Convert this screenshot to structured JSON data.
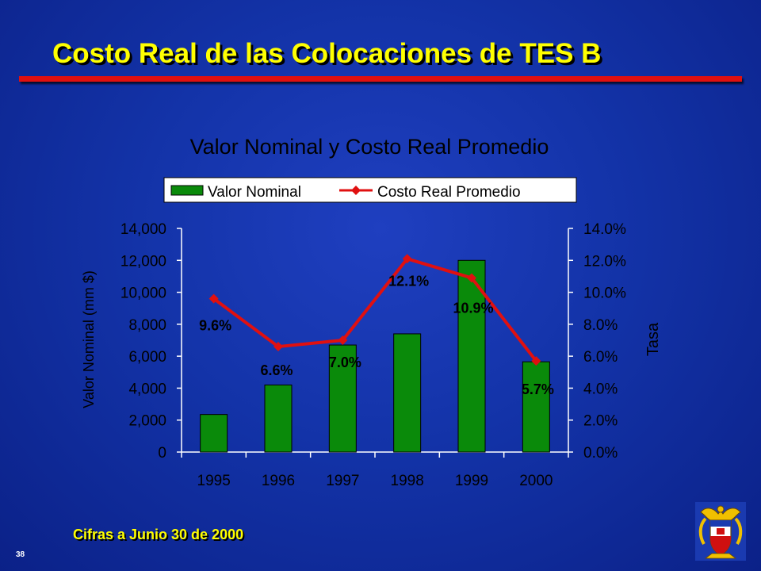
{
  "slide": {
    "title": "Costo Real de las Colocaciones de TES B",
    "footnote": "Cifras a Junio 30 de 2000",
    "page_number": "38"
  },
  "colors": {
    "bar": "#0a8a0a",
    "line": "#e01010",
    "title": "#ffff00",
    "rule": "#e01010",
    "axis": "#ffffff"
  },
  "icons": {
    "emblem": "colombia-coat-of-arms-icon"
  },
  "chart_data": {
    "type": "bar",
    "title": "Valor Nominal y Costo Real Promedio",
    "categories": [
      "1995",
      "1996",
      "1997",
      "1998",
      "1999",
      "2000"
    ],
    "ylabel": "Valor Nominal (mm $)",
    "y2label": "Tasa",
    "ylim": [
      0,
      14000
    ],
    "y2lim": [
      0,
      0.14
    ],
    "yticks": [
      "0",
      "2,000",
      "4,000",
      "6,000",
      "8,000",
      "10,000",
      "12,000",
      "14,000"
    ],
    "y2ticks": [
      "0.0%",
      "2.0%",
      "4.0%",
      "6.0%",
      "8.0%",
      "10.0%",
      "12.0%",
      "14.0%"
    ],
    "legend_position": "top",
    "grid": false,
    "series": [
      {
        "name": "Valor Nominal",
        "type": "bar",
        "axis": "left",
        "values": [
          2350,
          4200,
          6700,
          7400,
          12000,
          5650
        ]
      },
      {
        "name": "Costo Real Promedio",
        "type": "line",
        "axis": "right",
        "values": [
          0.096,
          0.066,
          0.07,
          0.121,
          0.109,
          0.057
        ],
        "labels": [
          "9.6%",
          "6.6%",
          "7.0%",
          "12.1%",
          "10.9%",
          "5.7%"
        ]
      }
    ]
  }
}
